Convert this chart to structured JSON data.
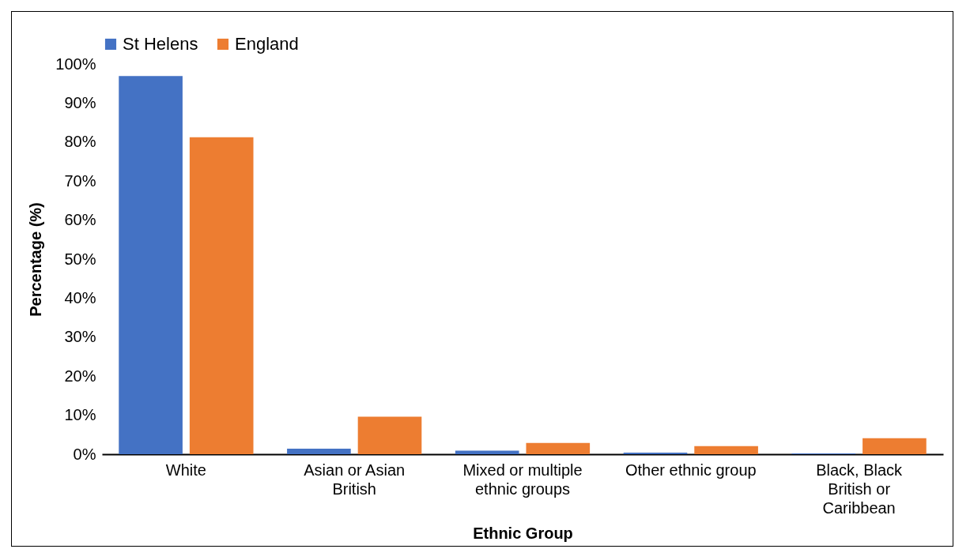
{
  "chart_data": {
    "type": "bar",
    "xlabel": "Ethnic Group",
    "ylabel": "Percentage (%)",
    "categories": [
      "White",
      "Asian or Asian British",
      "Mixed or multiple ethnic groups",
      "Other ethnic group",
      "Black, Black British or Caribbean"
    ],
    "series": [
      {
        "name": "St Helens",
        "color": "#4472c4",
        "values": [
          96.9,
          1.4,
          0.9,
          0.4,
          0.2
        ]
      },
      {
        "name": "England",
        "color": "#ed7d31",
        "values": [
          81.2,
          9.6,
          2.9,
          2.1,
          4.1
        ]
      }
    ],
    "ylim": [
      0,
      100
    ],
    "yticks": [
      {
        "value": 0,
        "label": "0%"
      },
      {
        "value": 10,
        "label": "10%"
      },
      {
        "value": 20,
        "label": "20%"
      },
      {
        "value": 30,
        "label": "30%"
      },
      {
        "value": 40,
        "label": "40%"
      },
      {
        "value": 50,
        "label": "50%"
      },
      {
        "value": 60,
        "label": "60%"
      },
      {
        "value": 70,
        "label": "70%"
      },
      {
        "value": 80,
        "label": "80%"
      },
      {
        "value": 90,
        "label": "90%"
      },
      {
        "value": 100,
        "label": "100%"
      }
    ],
    "grid": false,
    "legend": "top"
  }
}
